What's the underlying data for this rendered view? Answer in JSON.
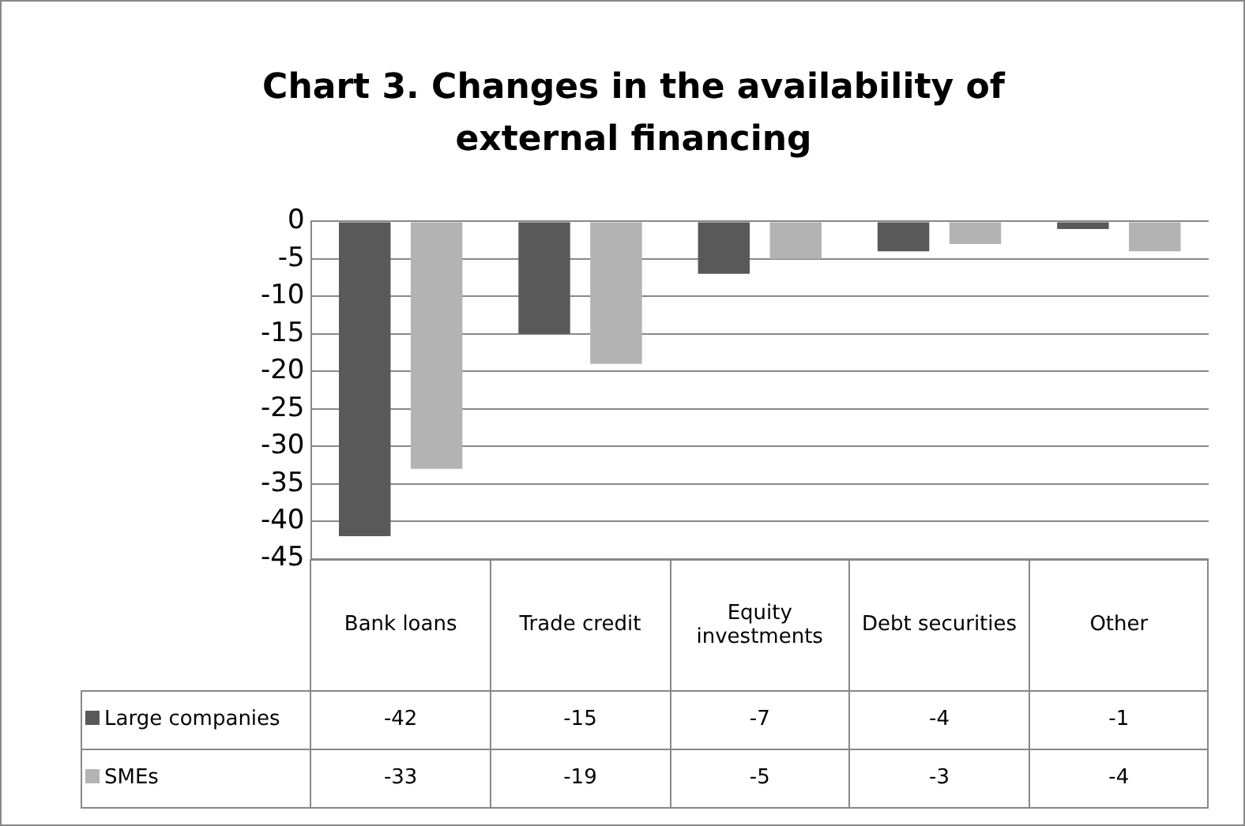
{
  "chart_data": {
    "type": "bar",
    "title": "Chart 3. Changes in the availability of external financing",
    "categories": [
      "Bank loans",
      "Trade credit",
      "Equity investments",
      "Debt securities",
      "Other"
    ],
    "series": [
      {
        "name": "Large companies",
        "color": "#595959",
        "values": [
          -42,
          -15,
          -7,
          -4,
          -1
        ]
      },
      {
        "name": "SMEs",
        "color": "#b3b3b3",
        "values": [
          -33,
          -19,
          -5,
          -3,
          -4
        ]
      }
    ],
    "ylim": [
      -45,
      0
    ],
    "yticks": [
      0,
      -5,
      -10,
      -15,
      -20,
      -25,
      -30,
      -35,
      -40,
      -45
    ],
    "grid": "y",
    "legend": "bottom",
    "data_labels": true
  }
}
